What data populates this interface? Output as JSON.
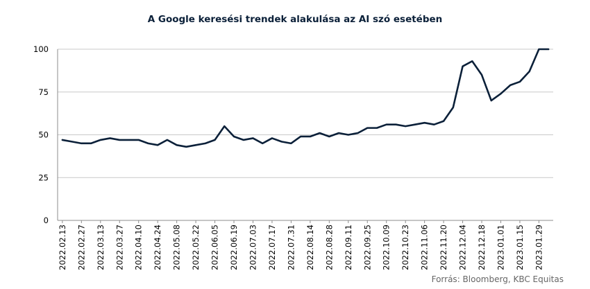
{
  "chart_data": {
    "type": "line",
    "title": "A Google keresési trendek alakulása az AI szó esetében",
    "xlabel": "",
    "ylabel": "",
    "ylim": [
      0,
      100
    ],
    "yticks": [
      0,
      25,
      50,
      75,
      100
    ],
    "grid": true,
    "legend": "none",
    "line_color": "#0b2039",
    "x_tick_labels": [
      "2022.02.13",
      "2022.02.27",
      "2022.03.13",
      "2022.03.27",
      "2022.04.10",
      "2022.04.24",
      "2022.05.08",
      "2022.05.22",
      "2022.06.05",
      "2022.06.19",
      "2022.07.03",
      "2022.07.17",
      "2022.07.31",
      "2022.08.14",
      "2022.08.28",
      "2022.09.11",
      "2022.09.25",
      "2022.10.09",
      "2022.10.23",
      "2022.11.06",
      "2022.11.20",
      "2022.12.04",
      "2022.12.18",
      "2023.01.01",
      "2023.01.15",
      "2023.01.29"
    ],
    "x": [
      "2022.02.13",
      "2022.02.20",
      "2022.02.27",
      "2022.03.06",
      "2022.03.13",
      "2022.03.20",
      "2022.03.27",
      "2022.04.03",
      "2022.04.10",
      "2022.04.17",
      "2022.04.24",
      "2022.05.01",
      "2022.05.08",
      "2022.05.15",
      "2022.05.22",
      "2022.05.29",
      "2022.06.05",
      "2022.06.12",
      "2022.06.19",
      "2022.06.26",
      "2022.07.03",
      "2022.07.10",
      "2022.07.17",
      "2022.07.24",
      "2022.07.31",
      "2022.08.07",
      "2022.08.14",
      "2022.08.21",
      "2022.08.28",
      "2022.09.04",
      "2022.09.11",
      "2022.09.18",
      "2022.09.25",
      "2022.10.02",
      "2022.10.09",
      "2022.10.16",
      "2022.10.23",
      "2022.10.30",
      "2022.11.06",
      "2022.11.13",
      "2022.11.20",
      "2022.11.27",
      "2022.12.04",
      "2022.12.11",
      "2022.12.18",
      "2022.12.25",
      "2023.01.01",
      "2023.01.08",
      "2023.01.15",
      "2023.01.22",
      "2023.01.29",
      "2023.02.05"
    ],
    "values": [
      47,
      46,
      45,
      45,
      47,
      48,
      47,
      47,
      47,
      45,
      44,
      47,
      44,
      43,
      44,
      45,
      47,
      55,
      49,
      47,
      48,
      45,
      48,
      46,
      45,
      49,
      49,
      51,
      49,
      51,
      50,
      51,
      54,
      54,
      56,
      56,
      55,
      56,
      57,
      56,
      58,
      66,
      90,
      93,
      85,
      70,
      74,
      79,
      81,
      87,
      100,
      100
    ]
  },
  "footer": {
    "source": "Forrás: Bloomberg,  KBC Equitas"
  }
}
